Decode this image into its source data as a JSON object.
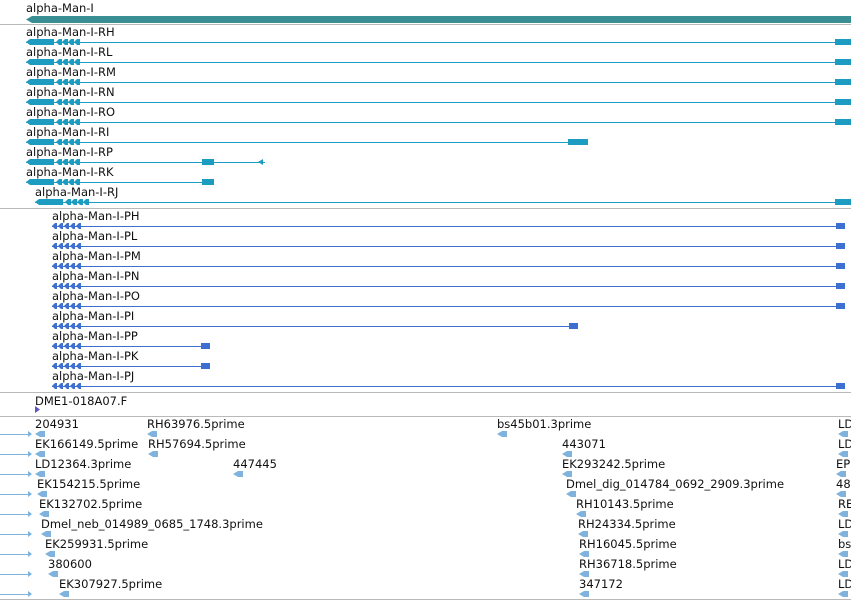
{
  "colors": {
    "gene": "#3a8f94",
    "transcript": "#1b9cc0",
    "protein": "#3c6fd0",
    "est": "#7fb3dd",
    "separator": "#b9b9b9",
    "label": "#111111"
  },
  "gene_track": {
    "label": "alpha-Man-I"
  },
  "transcripts": [
    {
      "label": "alpha-Man-I-RH",
      "extends_right": true
    },
    {
      "label": "alpha-Man-I-RL",
      "extends_right": true
    },
    {
      "label": "alpha-Man-I-RM",
      "extends_right": true
    },
    {
      "label": "alpha-Man-I-RN",
      "extends_right": true
    },
    {
      "label": "alpha-Man-I-RO",
      "extends_right": true
    },
    {
      "label": "alpha-Man-I-RI",
      "extends_right": false
    },
    {
      "label": "alpha-Man-I-RP",
      "extends_right": false
    },
    {
      "label": "alpha-Man-I-RK",
      "extends_right": false
    },
    {
      "label": "alpha-Man-I-RJ",
      "extends_right": true
    }
  ],
  "proteins": [
    {
      "label": "alpha-Man-I-PH"
    },
    {
      "label": "alpha-Man-I-PL"
    },
    {
      "label": "alpha-Man-I-PM"
    },
    {
      "label": "alpha-Man-I-PN"
    },
    {
      "label": "alpha-Man-I-PO"
    },
    {
      "label": "alpha-Man-I-PI"
    },
    {
      "label": "alpha-Man-I-PP"
    },
    {
      "label": "alpha-Man-I-PK"
    },
    {
      "label": "alpha-Man-I-PJ"
    }
  ],
  "clone_track": {
    "label": "DME1-018A07.F"
  },
  "est_track": {
    "rows": [
      [
        "204931",
        "RH63976.5prime",
        "bs45b01.3prime",
        "LD"
      ],
      [
        "EK166149.5prime",
        "RH57694.5prime",
        "443071",
        "LD"
      ],
      [
        "LD12364.3prime",
        "447445",
        "EK293242.5prime",
        "EP"
      ],
      [
        "EK154215.5prime",
        "Dmel_dig_014784_0692_2909.3prime",
        "48"
      ],
      [
        "EK132702.5prime",
        "RH10143.5prime",
        "RE"
      ],
      [
        "Dmel_neb_014989_0685_1748.3prime",
        "RH24334.5prime",
        "LD"
      ],
      [
        "EK259931.5prime",
        "RH16045.5prime",
        "bs"
      ],
      [
        "380600",
        "RH36718.5prime",
        "LD"
      ],
      [
        "EK307927.5prime",
        "347172",
        "LD"
      ]
    ]
  }
}
